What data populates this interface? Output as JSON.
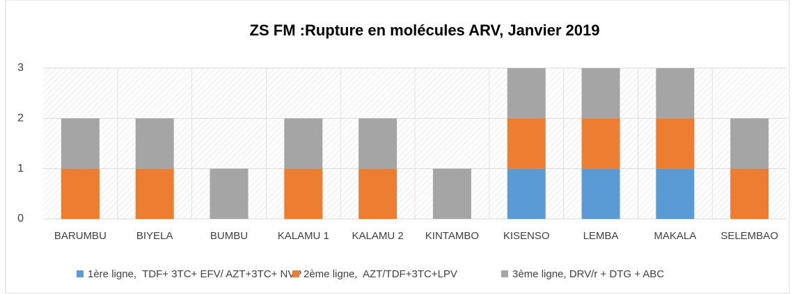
{
  "chart_data": {
    "type": "stacked_bar",
    "title": "ZS FM :Rupture en molécules ARV, Janvier 2019",
    "categories": [
      "BARUMBU",
      "BIYELA",
      "BUMBU",
      "KALAMU 1",
      "KALAMU 2",
      "KINTAMBO",
      "KISENSO",
      "LEMBA",
      "MAKALA",
      "SELEMBAO"
    ],
    "series": [
      {
        "name": "1ère ligne,  TDF+ 3TC+ EFV/ AZT+3TC+ NVP",
        "color": "#5b9bd5",
        "values": [
          0,
          0,
          0,
          0,
          0,
          0,
          1,
          1,
          1,
          0
        ]
      },
      {
        "name": "2ème ligne,  AZT/TDF+3TC+LPV",
        "color": "#ed7d31",
        "values": [
          1,
          1,
          0,
          1,
          1,
          0,
          1,
          1,
          1,
          1
        ]
      },
      {
        "name": "3ème ligne, DRV/r + DTG + ABC",
        "color": "#a5a5a5",
        "values": [
          1,
          1,
          1,
          1,
          1,
          1,
          1,
          1,
          1,
          1
        ]
      }
    ],
    "ylim": [
      0,
      3
    ],
    "yticks": [
      0,
      1,
      2,
      3
    ],
    "grid": true,
    "legend": "bottom"
  }
}
